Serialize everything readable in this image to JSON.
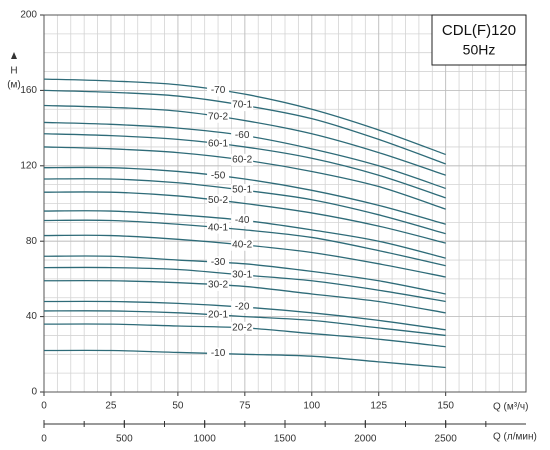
{
  "chart_data": {
    "type": "line",
    "title": "CDL(F)120",
    "subtitle": "50Hz",
    "y_label": "H",
    "y_unit": "(м)",
    "x_label": "Q (м³/ч)",
    "x2_label": "Q (л/мин)",
    "color": "#2e6b78",
    "grid": true,
    "xlim": [
      0,
      180
    ],
    "xticks": [
      0,
      25,
      50,
      75,
      100,
      125,
      150
    ],
    "x2lim": [
      0,
      3000
    ],
    "x2ticks": [
      0,
      500,
      1000,
      1500,
      2000,
      2500
    ],
    "ylim": [
      0,
      200
    ],
    "yticks": [
      0,
      40,
      80,
      120,
      160,
      200
    ],
    "x": [
      0,
      25,
      50,
      75,
      100,
      125,
      150
    ],
    "series": [
      {
        "name": "-70",
        "values": [
          166,
          165,
          163,
          158,
          150,
          139,
          126
        ]
      },
      {
        "name": "70-1",
        "values": [
          160,
          159,
          157,
          152,
          145,
          134,
          121
        ]
      },
      {
        "name": "70-2",
        "values": [
          152,
          151,
          149,
          144,
          137,
          127,
          115
        ]
      },
      {
        "name": "-60",
        "values": [
          143,
          142,
          140,
          136,
          129,
          120,
          108
        ]
      },
      {
        "name": "60-1",
        "values": [
          137,
          136,
          134,
          130,
          124,
          115,
          103
        ]
      },
      {
        "name": "60-2",
        "values": [
          130,
          129,
          127,
          123,
          117,
          109,
          97
        ]
      },
      {
        "name": "-50",
        "values": [
          119,
          119,
          117,
          113,
          107,
          99,
          89
        ]
      },
      {
        "name": "50-1",
        "values": [
          113,
          113,
          111,
          107,
          102,
          94,
          84
        ]
      },
      {
        "name": "50-2",
        "values": [
          106,
          106,
          104,
          100,
          95,
          88,
          79
        ]
      },
      {
        "name": "-40",
        "values": [
          96,
          96,
          94,
          91,
          86,
          80,
          71
        ]
      },
      {
        "name": "40-1",
        "values": [
          91,
          91,
          89,
          86,
          82,
          75,
          67
        ]
      },
      {
        "name": "40-2",
        "values": [
          83,
          83,
          81,
          78,
          74,
          68,
          61
        ]
      },
      {
        "name": "-30",
        "values": [
          72,
          72,
          70,
          68,
          64,
          59,
          52
        ]
      },
      {
        "name": "30-1",
        "values": [
          66,
          66,
          65,
          62,
          59,
          54,
          48
        ]
      },
      {
        "name": "30-2",
        "values": [
          59,
          59,
          58,
          56,
          52,
          48,
          42
        ]
      },
      {
        "name": "-20",
        "values": [
          48,
          48,
          47,
          45,
          42,
          38,
          33
        ]
      },
      {
        "name": "20-1",
        "values": [
          43,
          43,
          42,
          40,
          38,
          34,
          30
        ]
      },
      {
        "name": "20-2",
        "values": [
          36,
          36,
          35,
          34,
          31,
          28,
          24
        ]
      },
      {
        "name": "-10",
        "values": [
          22,
          22,
          21,
          20,
          19,
          16,
          13
        ]
      }
    ]
  }
}
